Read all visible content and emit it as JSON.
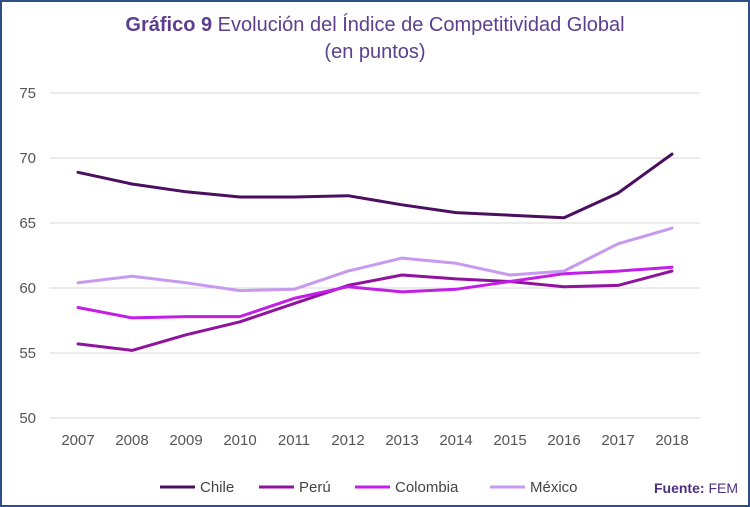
{
  "title": {
    "lead": "Gráfico 9",
    "text": "Evolución del Índice de Competitividad Global",
    "subtitle": "(en puntos)"
  },
  "source": {
    "label": "Fuente:",
    "value": "FEM"
  },
  "chart_data": {
    "type": "line",
    "title": "Gráfico 9 Evolución del Índice de Competitividad Global",
    "subtitle": "(en puntos)",
    "xlabel": "",
    "ylabel": "",
    "x": [
      "2007",
      "2008",
      "2009",
      "2010",
      "2011",
      "2012",
      "2013",
      "2014",
      "2015",
      "2016",
      "2017",
      "2018"
    ],
    "yticks": [
      "50",
      "55",
      "60",
      "65",
      "70",
      "75"
    ],
    "ylim": [
      50,
      75
    ],
    "grid": "horizontal",
    "legend_position": "bottom",
    "series": [
      {
        "name": "Chile",
        "color": "#4a0f5e",
        "values": [
          68.9,
          68.0,
          67.4,
          67.0,
          67.0,
          67.1,
          66.4,
          65.8,
          65.6,
          65.4,
          67.3,
          70.3
        ]
      },
      {
        "name": "Perú",
        "color": "#8f139d",
        "values": [
          55.7,
          55.2,
          56.4,
          57.4,
          58.8,
          60.2,
          61.0,
          60.7,
          60.5,
          60.1,
          60.2,
          61.3
        ]
      },
      {
        "name": "Colombia",
        "color": "#c21ee8",
        "values": [
          58.5,
          57.7,
          57.8,
          57.8,
          59.2,
          60.1,
          59.7,
          59.9,
          60.5,
          61.1,
          61.3,
          61.6
        ]
      },
      {
        "name": "México",
        "color": "#c79af0",
        "values": [
          60.4,
          60.9,
          60.4,
          59.8,
          59.9,
          61.3,
          62.3,
          61.9,
          61.0,
          61.3,
          63.4,
          64.6
        ]
      }
    ]
  }
}
